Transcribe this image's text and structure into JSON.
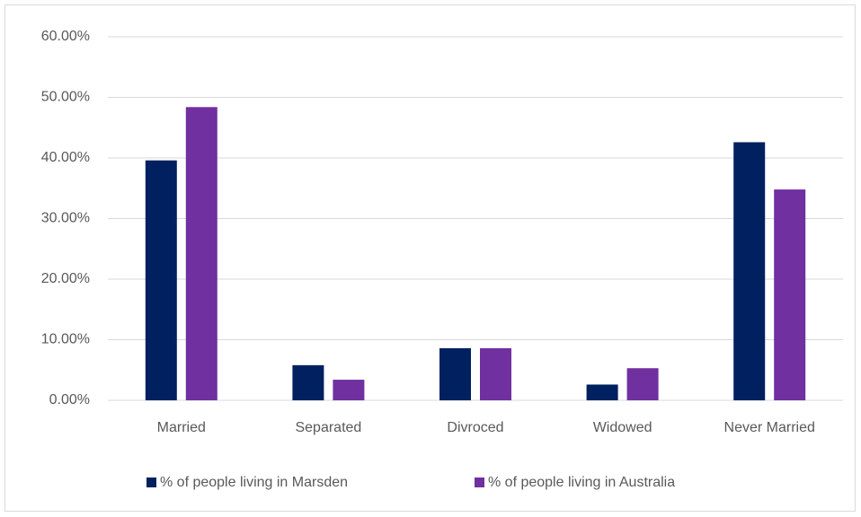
{
  "chart_data": {
    "type": "bar",
    "categories": [
      "Married",
      "Separated",
      "Divroced",
      "Widowed",
      "Never Married"
    ],
    "series": [
      {
        "name": "% of people living in Marsden",
        "color": "#002060",
        "values": [
          39.6,
          5.8,
          8.6,
          2.6,
          42.6
        ]
      },
      {
        "name": "% of people living in Australia",
        "color": "#7030a0",
        "values": [
          48.4,
          3.4,
          8.6,
          5.3,
          34.8
        ]
      }
    ],
    "ylim": [
      0,
      60
    ],
    "yticks": [
      {
        "value": 0,
        "label": "0.00%"
      },
      {
        "value": 10,
        "label": "10.00%"
      },
      {
        "value": 20,
        "label": "20.00%"
      },
      {
        "value": 30,
        "label": "30.00%"
      },
      {
        "value": 40,
        "label": "40.00%"
      },
      {
        "value": 50,
        "label": "50.00%"
      },
      {
        "value": 60,
        "label": "60.00%"
      }
    ],
    "grid": true,
    "legend": "bottom"
  }
}
